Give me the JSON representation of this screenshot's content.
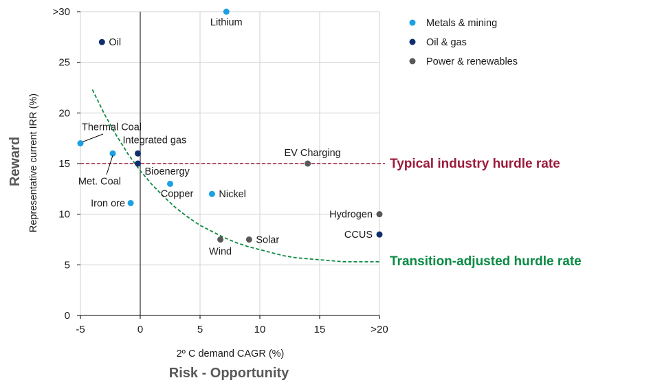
{
  "chart_data": {
    "type": "scatter",
    "xlabel": "2º C demand  CAGR (%)",
    "ylabel": "Representative  current IRR (%)",
    "x_axis_title": "Risk - Opportunity",
    "y_axis_title": "Reward",
    "xlim": [
      -5,
      20
    ],
    "ylim": [
      0,
      30
    ],
    "x_ticks": [
      "-5",
      "0",
      "5",
      "10",
      "15",
      ">20"
    ],
    "y_ticks": [
      "0",
      "5",
      "10",
      "15",
      "20",
      "25",
      ">30"
    ],
    "grid": true,
    "legend_position": "top-right",
    "series": [
      {
        "name": "Metals  & mining",
        "color": "#1ba1e2"
      },
      {
        "name": "Oil & gas",
        "color": "#0e2e6e"
      },
      {
        "name": "Power & renewables",
        "color": "#595959"
      }
    ],
    "points": [
      {
        "label": "Lithium",
        "x": 7.2,
        "y": 30,
        "series": "Metals  & mining"
      },
      {
        "label": "Oil",
        "x": -3.2,
        "y": 27,
        "series": "Oil & gas"
      },
      {
        "label": "Thermal  Coal",
        "x": -5,
        "y": 17,
        "series": "Metals  & mining"
      },
      {
        "label": "Met. Coal",
        "x": -2.3,
        "y": 16,
        "series": "Metals  & mining"
      },
      {
        "label": "Integrated gas",
        "x": -0.2,
        "y": 16,
        "series": "Oil & gas"
      },
      {
        "label": "Bioenergy",
        "x": -0.2,
        "y": 15,
        "series": "Oil & gas"
      },
      {
        "label": "Copper",
        "x": 2.5,
        "y": 13,
        "series": "Metals  & mining"
      },
      {
        "label": "Nickel",
        "x": 6,
        "y": 12,
        "series": "Metals  & mining"
      },
      {
        "label": "Iron ore",
        "x": -0.8,
        "y": 11.1,
        "series": "Metals  & mining"
      },
      {
        "label": "EV Charging",
        "x": 14,
        "y": 15,
        "series": "Power & renewables"
      },
      {
        "label": "Hydrogen",
        "x": 20,
        "y": 10,
        "series": "Power & renewables"
      },
      {
        "label": "CCUS",
        "x": 20,
        "y": 8,
        "series": "Oil & gas"
      },
      {
        "label": "Wind",
        "x": 6.7,
        "y": 7.5,
        "series": "Power & renewables"
      },
      {
        "label": "Solar",
        "x": 9.1,
        "y": 7.5,
        "series": "Power & renewables"
      }
    ],
    "reference_lines": [
      {
        "label": "Typical industry hurdle rate",
        "y": 15,
        "color": "#9b1b3b",
        "style": "dashed"
      }
    ],
    "curve": {
      "label": "Transition-adjusted hurdle rate",
      "color": "#0a8a43",
      "style": "dashed",
      "x": [
        -4,
        -3,
        -2,
        -1,
        0,
        1,
        2,
        3,
        4,
        5,
        6,
        7,
        8,
        9,
        10,
        11,
        12,
        13,
        14,
        15,
        16,
        17,
        18,
        19,
        20
      ],
      "y": [
        22.3,
        19.9,
        17.8,
        15.9,
        14.3,
        12.9,
        11.7,
        10.6,
        9.7,
        8.9,
        8.3,
        7.7,
        7.2,
        6.8,
        6.5,
        6.2,
        5.9,
        5.7,
        5.6,
        5.5,
        5.4,
        5.3,
        5.3,
        5.3,
        5.3
      ]
    }
  }
}
